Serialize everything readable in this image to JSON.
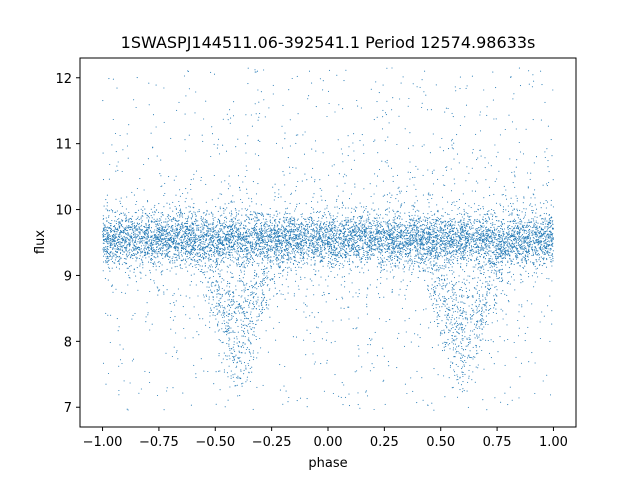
{
  "chart_data": {
    "type": "scatter",
    "title": "1SWASPJ144511.06-392541.1 Period 12574.98633s",
    "xlabel": "phase",
    "ylabel": "flux",
    "xlim": [
      -1.1,
      1.1
    ],
    "ylim": [
      6.7,
      12.3
    ],
    "grid": false,
    "xticks": [
      -1.0,
      -0.75,
      -0.5,
      -0.25,
      0.0,
      0.25,
      0.5,
      0.75,
      1.0
    ],
    "xtick_labels": [
      "−1.00",
      "−0.75",
      "−0.50",
      "−0.25",
      "0.00",
      "0.25",
      "0.50",
      "0.75",
      "1.00"
    ],
    "yticks": [
      7,
      8,
      9,
      10,
      11,
      12
    ],
    "ytick_labels": [
      "7",
      "8",
      "9",
      "10",
      "11",
      "12"
    ],
    "marker_color": "#1f77b4",
    "series": [
      {
        "x_range": [
          -1.0,
          1.0
        ],
        "baseline_flux": 9.55,
        "core_band": [
          9.0,
          10.1
        ],
        "scatter_range": [
          6.95,
          12.15
        ],
        "dips": [
          {
            "phase_center": -0.4,
            "min_flux": 7.6
          },
          {
            "phase_center": 0.6,
            "min_flux": 7.6
          }
        ]
      }
    ]
  }
}
